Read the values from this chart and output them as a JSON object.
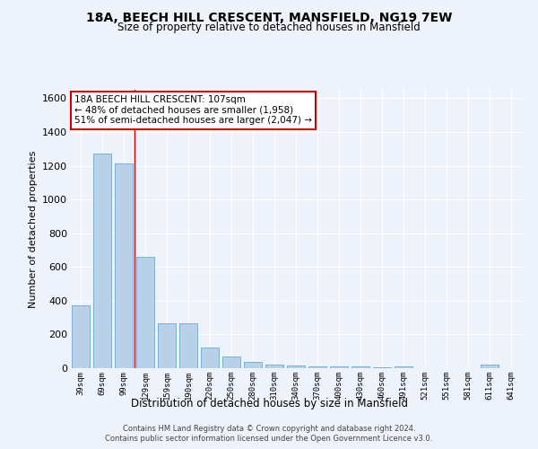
{
  "title": "18A, BEECH HILL CRESCENT, MANSFIELD, NG19 7EW",
  "subtitle": "Size of property relative to detached houses in Mansfield",
  "xlabel": "Distribution of detached houses by size in Mansfield",
  "ylabel": "Number of detached properties",
  "categories": [
    "39sqm",
    "69sqm",
    "99sqm",
    "129sqm",
    "159sqm",
    "190sqm",
    "220sqm",
    "250sqm",
    "280sqm",
    "310sqm",
    "340sqm",
    "370sqm",
    "400sqm",
    "430sqm",
    "460sqm",
    "491sqm",
    "521sqm",
    "551sqm",
    "581sqm",
    "611sqm",
    "641sqm"
  ],
  "values": [
    370,
    1270,
    1215,
    660,
    265,
    265,
    120,
    70,
    35,
    20,
    15,
    10,
    10,
    10,
    5,
    10,
    0,
    0,
    0,
    20,
    0
  ],
  "bar_color": "#b8d0e8",
  "bar_edge_color": "#7aafd4",
  "red_line_x": 2.5,
  "annotation_title": "18A BEECH HILL CRESCENT: 107sqm",
  "annotation_line1": "← 48% of detached houses are smaller (1,958)",
  "annotation_line2": "51% of semi-detached houses are larger (2,047) →",
  "annotation_box_facecolor": "#ffffff",
  "annotation_box_edgecolor": "#cc0000",
  "red_line_color": "#cc0000",
  "background_color": "#eef2fa",
  "grid_color": "#ffffff",
  "ylim": [
    0,
    1650
  ],
  "yticks": [
    0,
    200,
    400,
    600,
    800,
    1000,
    1200,
    1400,
    1600
  ],
  "footer1": "Contains HM Land Registry data © Crown copyright and database right 2024.",
  "footer2": "Contains public sector information licensed under the Open Government Licence v3.0."
}
